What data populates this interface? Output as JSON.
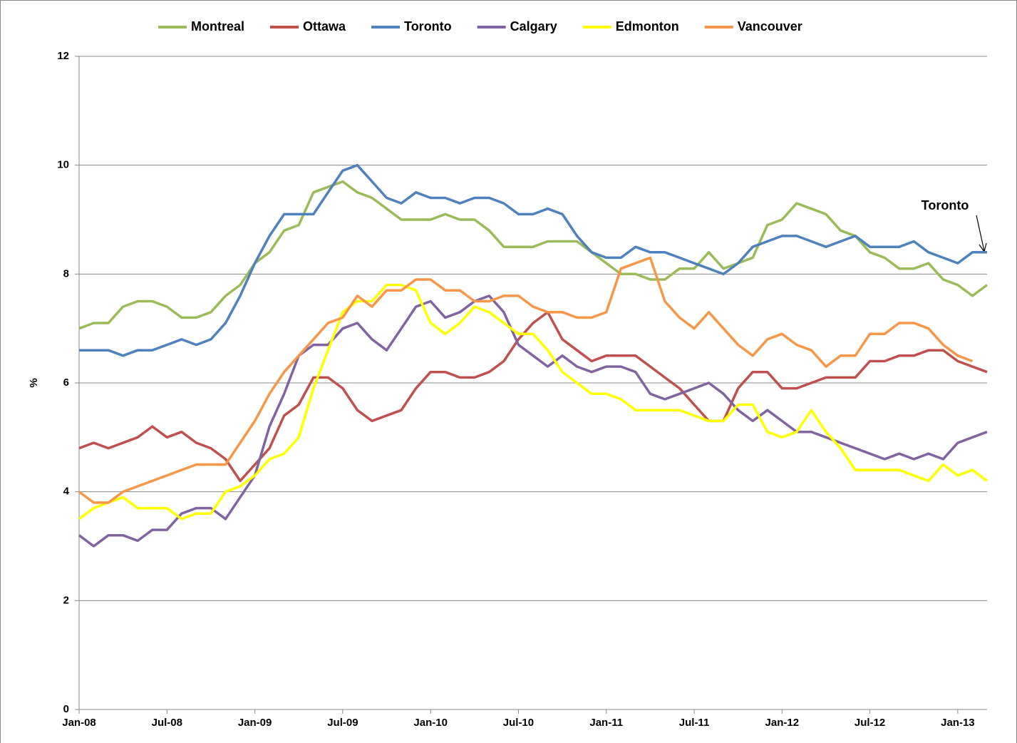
{
  "chart_data": {
    "type": "line",
    "y_label": "%",
    "annotation": "Toronto",
    "categories": [
      "Jan-08",
      null,
      null,
      null,
      null,
      null,
      "Jul-08",
      null,
      null,
      null,
      null,
      null,
      "Jan-09",
      null,
      null,
      null,
      null,
      null,
      "Jul-09",
      null,
      null,
      null,
      null,
      null,
      "Jan-10",
      null,
      null,
      null,
      null,
      null,
      "Jul-10",
      null,
      null,
      null,
      null,
      null,
      "Jan-11",
      null,
      null,
      null,
      null,
      null,
      "Jul-11",
      null,
      null,
      null,
      null,
      null,
      "Jan-12",
      null,
      null,
      null,
      null,
      null,
      "Jul-12",
      null,
      null,
      null,
      null,
      null,
      "Jan-13",
      null,
      null
    ],
    "series": [
      {
        "name": "Montreal",
        "color": "#9bbb59",
        "values": [
          7.0,
          7.1,
          7.1,
          7.4,
          7.5,
          7.5,
          7.4,
          7.2,
          7.2,
          7.3,
          7.6,
          7.8,
          8.2,
          8.4,
          8.8,
          8.9,
          9.5,
          9.6,
          9.7,
          9.5,
          9.4,
          9.2,
          9.0,
          9.0,
          9.0,
          9.1,
          9.0,
          9.0,
          8.8,
          8.5,
          8.5,
          8.5,
          8.6,
          8.6,
          8.6,
          8.4,
          8.2,
          8.0,
          8.0,
          7.9,
          7.9,
          8.1,
          8.1,
          8.4,
          8.1,
          8.2,
          8.3,
          8.9,
          9.0,
          9.3,
          9.2,
          9.1,
          8.8,
          8.7,
          8.4,
          8.3,
          8.1,
          8.1,
          8.2,
          7.9,
          7.8,
          7.6,
          7.8
        ]
      },
      {
        "name": "Ottawa",
        "color": "#c0504d",
        "values": [
          4.8,
          4.9,
          4.8,
          4.9,
          5.0,
          5.2,
          5.0,
          5.1,
          4.9,
          4.8,
          4.6,
          4.2,
          4.5,
          4.8,
          5.4,
          5.6,
          6.1,
          6.1,
          5.9,
          5.5,
          5.3,
          5.4,
          5.5,
          5.9,
          6.2,
          6.2,
          6.1,
          6.1,
          6.2,
          6.4,
          6.8,
          7.1,
          7.3,
          6.8,
          6.6,
          6.4,
          6.5,
          6.5,
          6.5,
          6.3,
          6.1,
          5.9,
          5.6,
          5.3,
          5.3,
          5.9,
          6.2,
          6.2,
          5.9,
          5.9,
          6.0,
          6.1,
          6.1,
          6.1,
          6.4,
          6.4,
          6.5,
          6.5,
          6.6,
          6.6,
          6.4,
          6.3,
          6.2
        ]
      },
      {
        "name": "Toronto",
        "color": "#4f81bd",
        "values": [
          6.6,
          6.6,
          6.6,
          6.5,
          6.6,
          6.6,
          6.7,
          6.8,
          6.7,
          6.8,
          7.1,
          7.6,
          8.2,
          8.7,
          9.1,
          9.1,
          9.1,
          9.5,
          9.9,
          10.0,
          9.7,
          9.4,
          9.3,
          9.5,
          9.4,
          9.4,
          9.3,
          9.4,
          9.4,
          9.3,
          9.1,
          9.1,
          9.2,
          9.1,
          8.7,
          8.4,
          8.3,
          8.3,
          8.5,
          8.4,
          8.4,
          8.3,
          8.2,
          8.1,
          8.0,
          8.2,
          8.5,
          8.6,
          8.7,
          8.7,
          8.6,
          8.5,
          8.6,
          8.7,
          8.5,
          8.5,
          8.5,
          8.6,
          8.4,
          8.3,
          8.2,
          8.4,
          8.4
        ]
      },
      {
        "name": "Calgary",
        "color": "#8064a2",
        "values": [
          3.2,
          3.0,
          3.2,
          3.2,
          3.1,
          3.3,
          3.3,
          3.6,
          3.7,
          3.7,
          3.5,
          3.9,
          4.3,
          5.2,
          5.8,
          6.5,
          6.7,
          6.7,
          7.0,
          7.1,
          6.8,
          6.6,
          7.0,
          7.4,
          7.5,
          7.2,
          7.3,
          7.5,
          7.6,
          7.3,
          6.7,
          6.5,
          6.3,
          6.5,
          6.3,
          6.2,
          6.3,
          6.3,
          6.2,
          5.8,
          5.7,
          5.8,
          5.9,
          6.0,
          5.8,
          5.5,
          5.3,
          5.5,
          5.3,
          5.1,
          5.1,
          5.0,
          4.9,
          4.8,
          4.7,
          4.6,
          4.7,
          4.6,
          4.7,
          4.6,
          4.9,
          5.0,
          5.1
        ]
      },
      {
        "name": "Edmonton",
        "color": "#ffff00",
        "values": [
          3.5,
          3.7,
          3.8,
          3.9,
          3.7,
          3.7,
          3.7,
          3.5,
          3.6,
          3.6,
          4.0,
          4.1,
          4.3,
          4.6,
          4.7,
          5.0,
          5.9,
          6.6,
          7.3,
          7.5,
          7.5,
          7.8,
          7.8,
          7.7,
          7.1,
          6.9,
          7.1,
          7.4,
          7.3,
          7.1,
          6.9,
          6.9,
          6.6,
          6.2,
          6.0,
          5.8,
          5.8,
          5.7,
          5.5,
          5.5,
          5.5,
          5.5,
          5.4,
          5.3,
          5.3,
          5.6,
          5.6,
          5.1,
          5.0,
          5.1,
          5.5,
          5.1,
          4.8,
          4.4,
          4.4,
          4.4,
          4.4,
          4.3,
          4.2,
          4.5,
          4.3,
          4.4,
          4.2
        ]
      },
      {
        "name": "Vancouver",
        "color": "#f79646",
        "values": [
          4.0,
          3.8,
          3.8,
          4.0,
          4.1,
          4.2,
          4.3,
          4.4,
          4.5,
          4.5,
          4.5,
          4.9,
          5.3,
          5.8,
          6.2,
          6.5,
          6.8,
          7.1,
          7.2,
          7.6,
          7.4,
          7.7,
          7.7,
          7.9,
          7.9,
          7.7,
          7.7,
          7.5,
          7.5,
          7.6,
          7.6,
          7.4,
          7.3,
          7.3,
          7.2,
          7.2,
          7.3,
          8.1,
          8.2,
          8.3,
          7.5,
          7.2,
          7.0,
          7.3,
          7.0,
          6.7,
          6.5,
          6.8,
          6.9,
          6.7,
          6.6,
          6.3,
          6.5,
          6.5,
          6.9,
          6.9,
          7.1,
          7.1,
          7.0,
          6.7,
          6.5,
          6.4,
          null
        ]
      }
    ],
    "ylim": [
      0,
      12
    ],
    "yticks": [
      0,
      2,
      4,
      6,
      8,
      10,
      12
    ],
    "grid": true,
    "legend": "top"
  }
}
